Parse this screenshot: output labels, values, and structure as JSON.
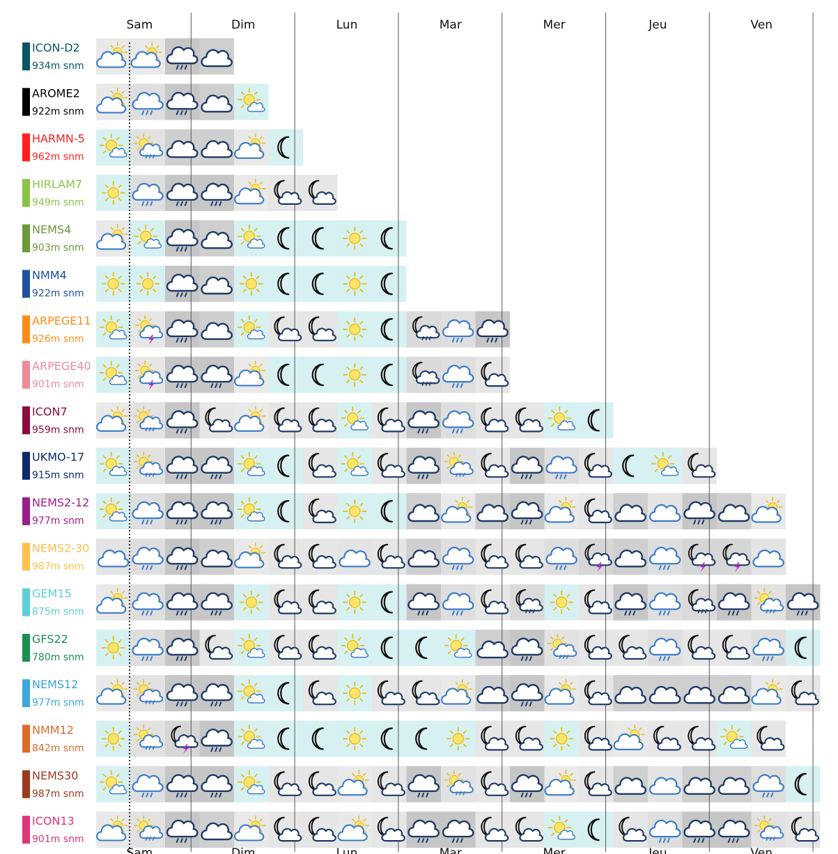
{
  "chart_data": {
    "type": "table",
    "days": [
      "Sam",
      "Dim",
      "Lun",
      "Mar",
      "Mer",
      "Jeu",
      "Ven"
    ],
    "models": [
      {
        "name": "ICON-D2",
        "alt": "934m snm",
        "color": "#0b5563",
        "icons": [
          "sun-cloud",
          "sun-cloud",
          "rain",
          "cloud"
        ]
      },
      {
        "name": "AROME2",
        "alt": "922m snm",
        "color": "#000000",
        "icons": [
          "sun-cloud",
          "light-rain",
          "rain",
          "cloud",
          "sun-small-cloud"
        ]
      },
      {
        "name": "HARMN-5",
        "alt": "962m snm",
        "color": "#ff1f1f",
        "icons": [
          "sun-small-cloud",
          "sun-rain",
          "cloud",
          "cloud",
          "sun-cloud",
          "moon"
        ]
      },
      {
        "name": "HIRLAM7",
        "alt": "949m snm",
        "color": "#8bc34a",
        "icons": [
          "sun",
          "light-rain",
          "rain",
          "rain",
          "sun-cloud",
          "moon-cloud",
          "moon-cloud"
        ]
      },
      {
        "name": "NEMS4",
        "alt": "903m snm",
        "color": "#6a9a3a",
        "icons": [
          "sun-cloud",
          "sun-small-cloud",
          "rain",
          "cloud",
          "sun-small-cloud",
          "moon",
          "moon",
          "sun",
          "moon"
        ]
      },
      {
        "name": "NMM4",
        "alt": "922m snm",
        "color": "#1f4fa3",
        "icons": [
          "sun",
          "sun",
          "rain",
          "cloud",
          "sun",
          "moon",
          "moon",
          "sun",
          "moon"
        ]
      },
      {
        "name": "ARPEGE11",
        "alt": "926m snm",
        "color": "#ff8c1a",
        "icons": [
          "sun-small-cloud",
          "sun-storm",
          "rain",
          "cloud",
          "sun-small-cloud",
          "moon-cloud",
          "moon-cloud",
          "sun",
          "moon",
          "moon-rain",
          "light-rain",
          "rain"
        ]
      },
      {
        "name": "ARPEGE40",
        "alt": "901m snm",
        "color": "#ee8a9a",
        "icons": [
          "sun-small-cloud",
          "sun-storm",
          "rain",
          "rain",
          "sun-cloud",
          "moon",
          "moon",
          "sun",
          "moon",
          "moon-rain",
          "light-rain",
          "moon-cloud"
        ]
      },
      {
        "name": "ICON7",
        "alt": "959m snm",
        "color": "#8c0a3c",
        "icons": [
          "sun-cloud",
          "sun-rain",
          "rain",
          "moon-cloud",
          "sun-cloud",
          "moon-cloud",
          "moon-cloud",
          "sun-small-cloud",
          "moon-cloud",
          "rain",
          "light-rain",
          "moon-cloud",
          "moon-cloud",
          "sun-small-cloud",
          "moon"
        ]
      },
      {
        "name": "UKMO-17",
        "alt": "915m snm",
        "color": "#0a2a6b",
        "icons": [
          "sun-small-cloud",
          "sun-rain",
          "rain",
          "rain",
          "sun-small-cloud",
          "moon",
          "moon-cloud",
          "sun-small-cloud",
          "moon-cloud",
          "rain",
          "sun-rain",
          "moon-cloud",
          "rain",
          "light-rain",
          "moon-cloud",
          "moon",
          "sun-small-cloud",
          "moon-cloud"
        ]
      },
      {
        "name": "NEMS2-12",
        "alt": "977m snm",
        "color": "#9b1f8a",
        "icons": [
          "sun-small-cloud",
          "light-rain",
          "rain",
          "rain",
          "sun-small-cloud",
          "moon",
          "moon-cloud",
          "sun",
          "moon",
          "cloud",
          "sun-cloud",
          "cloud",
          "rain",
          "sun-cloud",
          "moon-cloud",
          "cloud",
          "light-cloud",
          "rain",
          "cloud",
          "sun-cloud"
        ]
      },
      {
        "name": "NEMS2-30",
        "alt": "987m snm",
        "color": "#ffc04d",
        "icons": [
          "light-cloud",
          "light-rain",
          "rain",
          "cloud",
          "sun-cloud",
          "moon-cloud",
          "moon-cloud",
          "light-cloud",
          "moon-cloud",
          "cloud",
          "light-rain",
          "moon-cloud",
          "moon-cloud",
          "light-rain",
          "moon-storm",
          "cloud",
          "light-rain",
          "moon-storm",
          "moon-storm",
          "light-cloud"
        ]
      },
      {
        "name": "GEM15",
        "alt": "875m snm",
        "color": "#5fcfd6",
        "icons": [
          "sun-cloud",
          "light-rain",
          "rain",
          "rain",
          "sun",
          "moon-cloud",
          "moon-cloud",
          "sun",
          "moon",
          "rain",
          "light-rain",
          "moon-cloud",
          "moon-rain",
          "sun",
          "moon-cloud",
          "rain",
          "light-rain",
          "moon-rain",
          "rain",
          "sun-rain",
          "rain"
        ]
      },
      {
        "name": "GFS22",
        "alt": "780m snm",
        "color": "#1b8f4f",
        "icons": [
          "sun",
          "light-rain",
          "rain",
          "moon-cloud",
          "sun-small-cloud",
          "moon-cloud",
          "moon-cloud",
          "sun-small-cloud",
          "moon",
          "moon",
          "sun-small-cloud",
          "cloud",
          "rain",
          "sun-rain",
          "moon-cloud",
          "moon-cloud",
          "light-rain",
          "moon-cloud",
          "moon-cloud",
          "light-rain",
          "moon"
        ]
      },
      {
        "name": "NEMS12",
        "alt": "977m snm",
        "color": "#3aa8d8",
        "icons": [
          "sun-cloud",
          "sun-rain",
          "rain",
          "rain",
          "sun-small-cloud",
          "moon",
          "moon-cloud",
          "sun",
          "moon-cloud",
          "moon-cloud",
          "sun-cloud",
          "cloud",
          "rain",
          "sun-cloud",
          "moon-cloud",
          "cloud",
          "cloud",
          "cloud",
          "cloud",
          "sun-cloud",
          "moon-cloud"
        ]
      },
      {
        "name": "NMM12",
        "alt": "842m snm",
        "color": "#e06a2a",
        "icons": [
          "sun",
          "sun-rain",
          "moon-storm",
          "rain",
          "sun-small-cloud",
          "moon",
          "moon",
          "sun",
          "moon",
          "moon",
          "sun",
          "moon-cloud",
          "moon-cloud",
          "sun",
          "moon-cloud",
          "sun-cloud",
          "moon-cloud",
          "moon-cloud",
          "sun-small-cloud",
          "moon-cloud"
        ]
      },
      {
        "name": "NEMS30",
        "alt": "987m snm",
        "color": "#9a3a1f",
        "icons": [
          "sun-small-cloud",
          "light-rain",
          "rain",
          "rain",
          "sun-small-cloud",
          "moon-cloud",
          "moon-cloud",
          "sun-cloud",
          "moon-cloud",
          "rain",
          "sun-rain",
          "moon-cloud",
          "rain",
          "sun-cloud",
          "moon-cloud",
          "cloud",
          "light-cloud",
          "cloud",
          "cloud",
          "light-rain",
          "moon"
        ]
      },
      {
        "name": "ICON13",
        "alt": "901m snm",
        "color": "#e0357a",
        "icons": [
          "sun-cloud",
          "sun-rain",
          "rain",
          "cloud",
          "sun-cloud",
          "moon-cloud",
          "moon-cloud",
          "sun-cloud",
          "moon-cloud",
          "rain",
          "rain",
          "moon-cloud",
          "moon-cloud",
          "sun-small-cloud",
          "moon",
          "moon-cloud",
          "light-rain",
          "rain",
          "rain",
          "sun-rain",
          "moon-cloud"
        ]
      }
    ]
  }
}
